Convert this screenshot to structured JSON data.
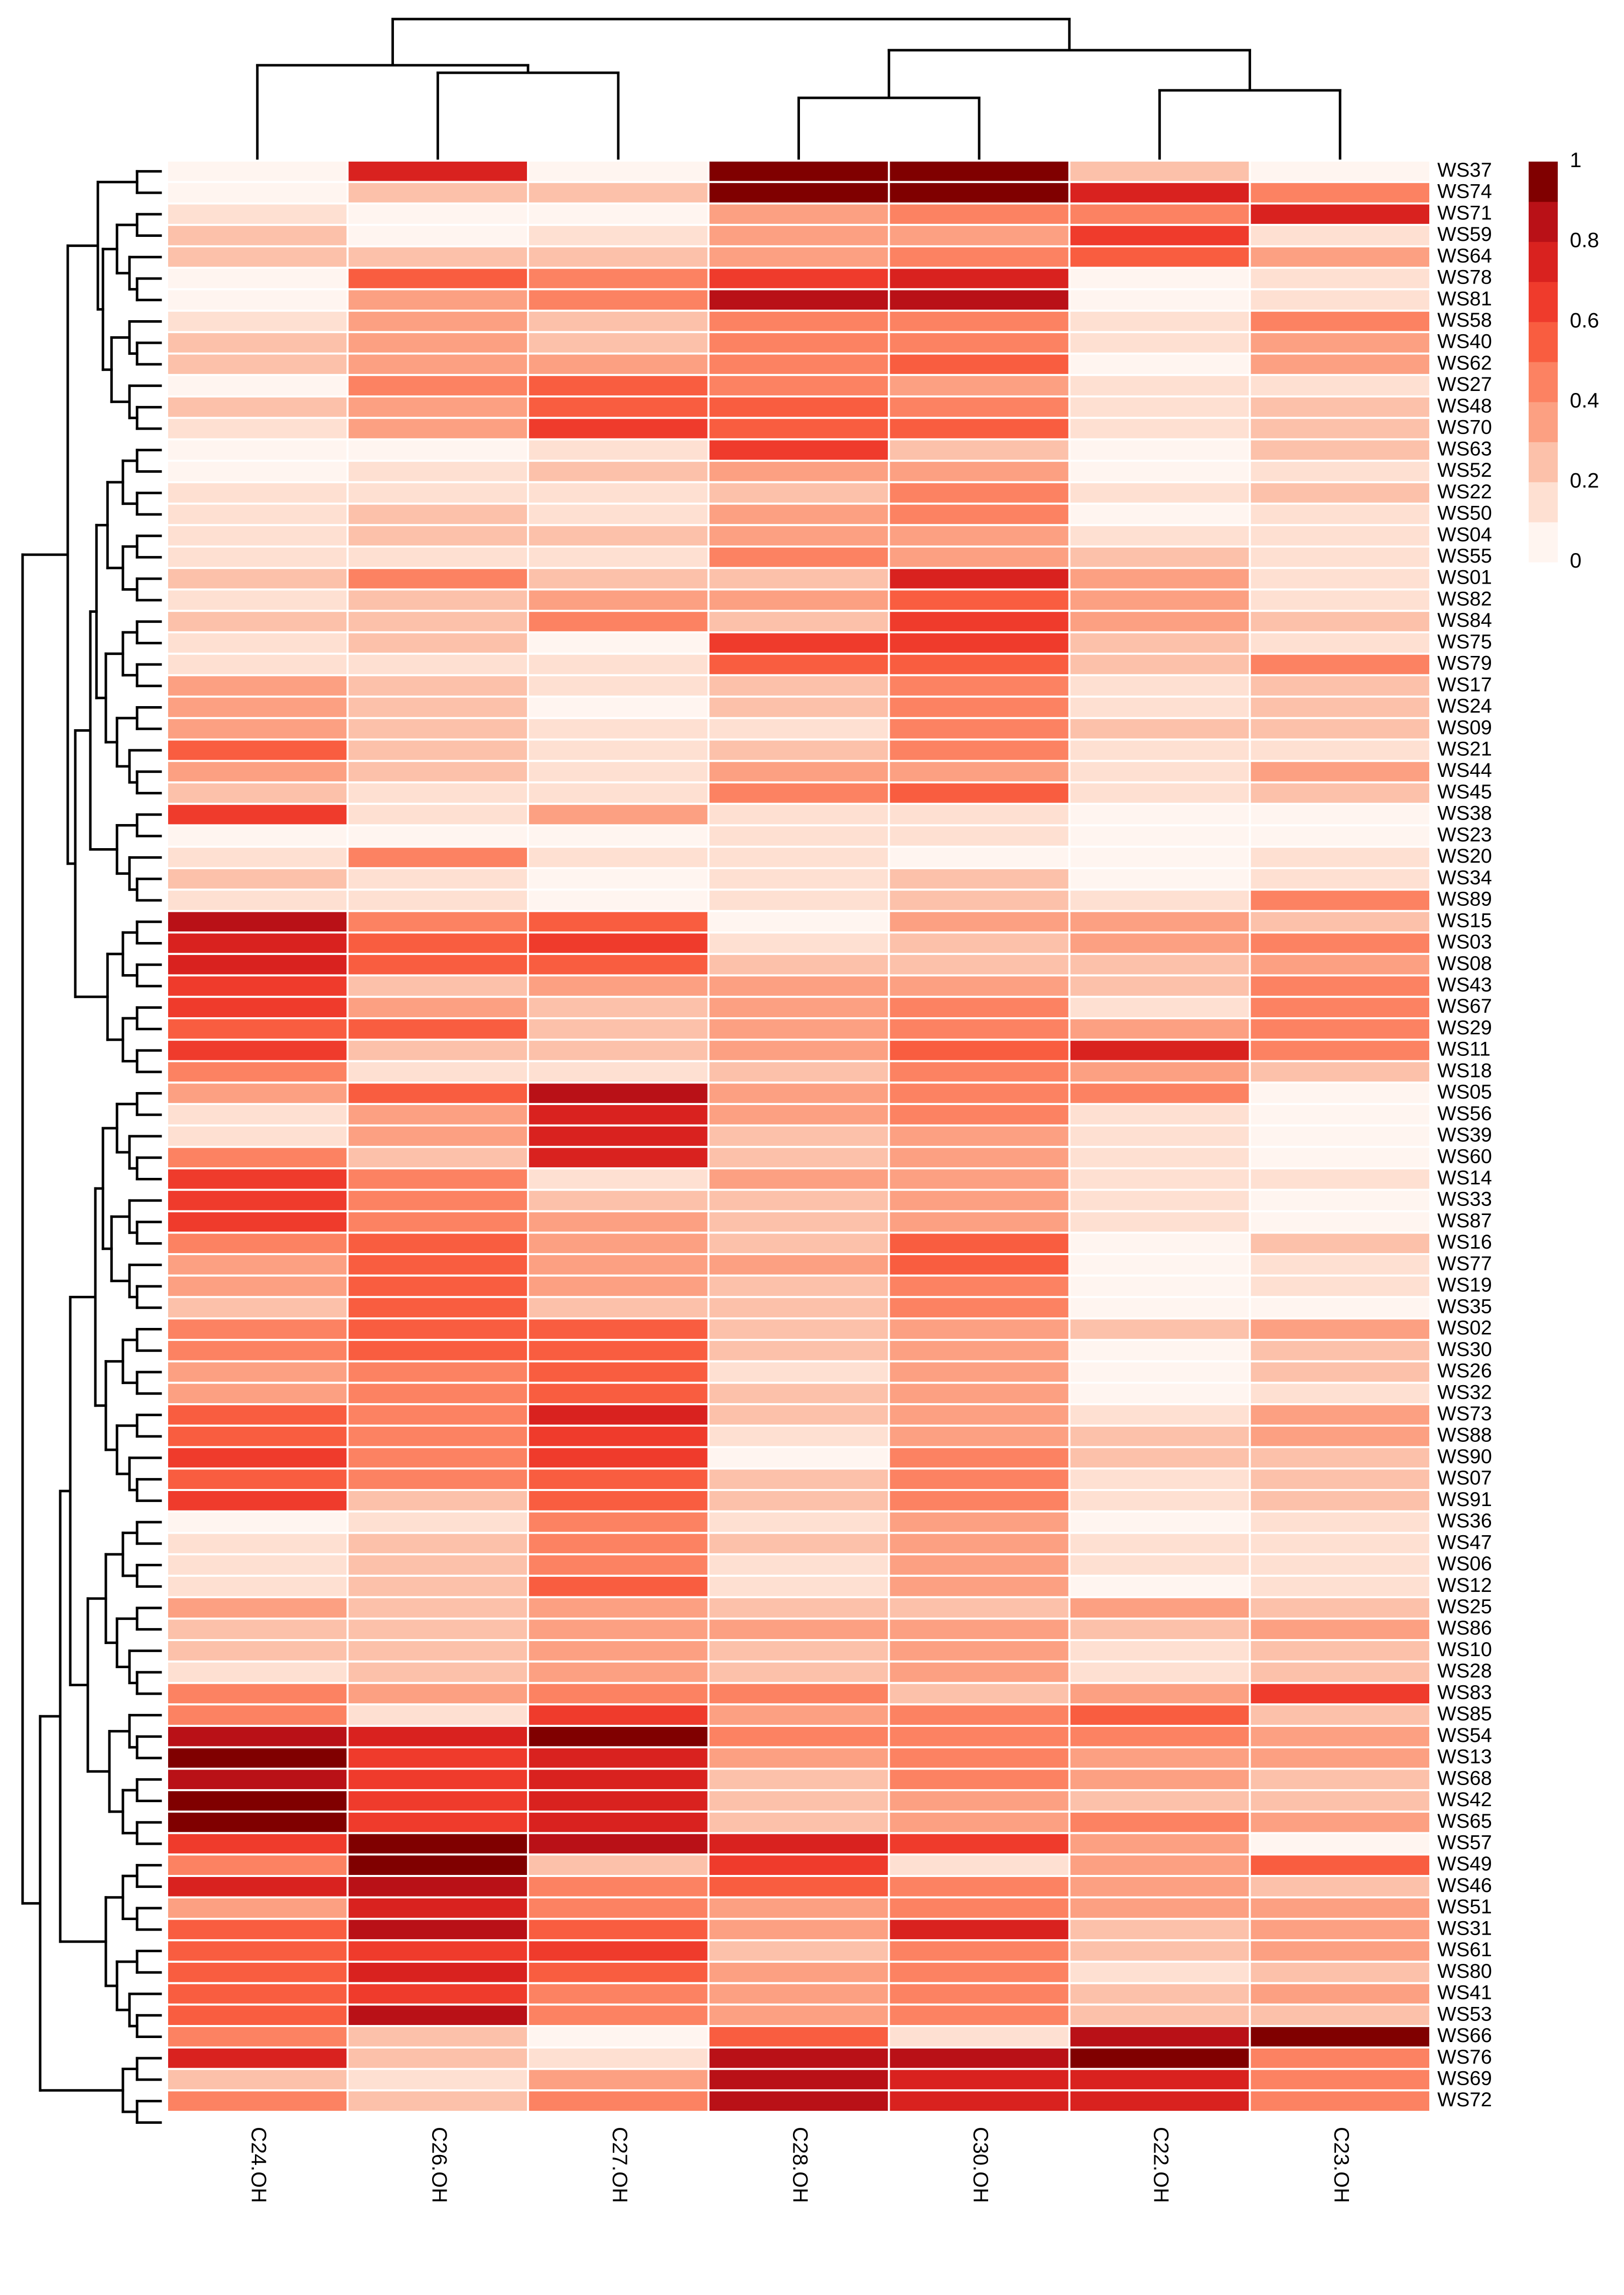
{
  "chart_data": {
    "type": "heatmap",
    "columns": [
      "C24.OH",
      "C26.OH",
      "C27.OH",
      "C28.OH",
      "C30.OH",
      "C22.OH",
      "C23.OH"
    ],
    "rows": [
      {
        "label": "WS37",
        "values": [
          0.02,
          0.8,
          0.03,
          1.0,
          1.0,
          0.3,
          0.05
        ]
      },
      {
        "label": "WS74",
        "values": [
          0.05,
          0.3,
          0.3,
          1.0,
          1.0,
          0.8,
          0.45
        ]
      },
      {
        "label": "WS71",
        "values": [
          0.15,
          0.05,
          0.1,
          0.35,
          0.45,
          0.5,
          0.75
        ]
      },
      {
        "label": "WS59",
        "values": [
          0.3,
          0.02,
          0.15,
          0.35,
          0.4,
          0.7,
          0.2
        ]
      },
      {
        "label": "WS64",
        "values": [
          0.3,
          0.3,
          0.3,
          0.4,
          0.45,
          0.6,
          0.4
        ]
      },
      {
        "label": "WS78",
        "values": [
          0.05,
          0.55,
          0.45,
          0.7,
          0.8,
          0.1,
          0.15
        ]
      },
      {
        "label": "WS81",
        "values": [
          0.05,
          0.4,
          0.45,
          0.85,
          0.85,
          0.05,
          0.2
        ]
      },
      {
        "label": "WS58",
        "values": [
          0.2,
          0.35,
          0.3,
          0.45,
          0.5,
          0.2,
          0.45
        ]
      },
      {
        "label": "WS40",
        "values": [
          0.3,
          0.35,
          0.3,
          0.45,
          0.45,
          0.15,
          0.4
        ]
      },
      {
        "label": "WS62",
        "values": [
          0.25,
          0.35,
          0.35,
          0.5,
          0.55,
          0.1,
          0.4
        ]
      },
      {
        "label": "WS27",
        "values": [
          0.1,
          0.45,
          0.6,
          0.45,
          0.35,
          0.15,
          0.2
        ]
      },
      {
        "label": "WS48",
        "values": [
          0.3,
          0.4,
          0.6,
          0.6,
          0.5,
          0.2,
          0.3
        ]
      },
      {
        "label": "WS70",
        "values": [
          0.15,
          0.35,
          0.7,
          0.6,
          0.55,
          0.2,
          0.25
        ]
      },
      {
        "label": "WS63",
        "values": [
          0.05,
          0.1,
          0.2,
          0.7,
          0.3,
          0.1,
          0.3
        ]
      },
      {
        "label": "WS52",
        "values": [
          0.05,
          0.15,
          0.3,
          0.35,
          0.35,
          0.1,
          0.15
        ]
      },
      {
        "label": "WS22",
        "values": [
          0.15,
          0.15,
          0.2,
          0.3,
          0.45,
          0.2,
          0.3
        ]
      },
      {
        "label": "WS50",
        "values": [
          0.15,
          0.25,
          0.15,
          0.4,
          0.45,
          0.1,
          0.15
        ]
      },
      {
        "label": "WS04",
        "values": [
          0.2,
          0.3,
          0.25,
          0.35,
          0.4,
          0.2,
          0.15
        ]
      },
      {
        "label": "WS55",
        "values": [
          0.2,
          0.2,
          0.2,
          0.45,
          0.4,
          0.3,
          0.15
        ]
      },
      {
        "label": "WS01",
        "values": [
          0.25,
          0.45,
          0.3,
          0.3,
          0.75,
          0.35,
          0.15
        ]
      },
      {
        "label": "WS82",
        "values": [
          0.15,
          0.25,
          0.35,
          0.4,
          0.6,
          0.35,
          0.2
        ]
      },
      {
        "label": "WS84",
        "values": [
          0.3,
          0.25,
          0.45,
          0.3,
          0.7,
          0.35,
          0.25
        ]
      },
      {
        "label": "WS75",
        "values": [
          0.2,
          0.3,
          0.1,
          0.7,
          0.65,
          0.3,
          0.2
        ]
      },
      {
        "label": "WS79",
        "values": [
          0.15,
          0.2,
          0.15,
          0.6,
          0.6,
          0.25,
          0.45
        ]
      },
      {
        "label": "WS17",
        "values": [
          0.4,
          0.3,
          0.15,
          0.3,
          0.45,
          0.2,
          0.3
        ]
      },
      {
        "label": "WS24",
        "values": [
          0.35,
          0.3,
          0.1,
          0.25,
          0.5,
          0.2,
          0.25
        ]
      },
      {
        "label": "WS09",
        "values": [
          0.35,
          0.3,
          0.2,
          0.2,
          0.45,
          0.25,
          0.3
        ]
      },
      {
        "label": "WS21",
        "values": [
          0.55,
          0.3,
          0.2,
          0.25,
          0.45,
          0.15,
          0.2
        ]
      },
      {
        "label": "WS44",
        "values": [
          0.4,
          0.25,
          0.15,
          0.35,
          0.4,
          0.2,
          0.35
        ]
      },
      {
        "label": "WS45",
        "values": [
          0.3,
          0.15,
          0.2,
          0.45,
          0.55,
          0.15,
          0.3
        ]
      },
      {
        "label": "WS38",
        "values": [
          0.7,
          0.2,
          0.4,
          0.15,
          0.2,
          0.05,
          0.1
        ]
      },
      {
        "label": "WS23",
        "values": [
          0.05,
          0.1,
          0.05,
          0.15,
          0.15,
          0.1,
          0.1
        ]
      },
      {
        "label": "WS20",
        "values": [
          0.15,
          0.45,
          0.15,
          0.2,
          0.05,
          0.1,
          0.15
        ]
      },
      {
        "label": "WS34",
        "values": [
          0.3,
          0.2,
          0.05,
          0.2,
          0.3,
          0.1,
          0.2
        ]
      },
      {
        "label": "WS89",
        "values": [
          0.2,
          0.2,
          0.1,
          0.15,
          0.25,
          0.15,
          0.45
        ]
      },
      {
        "label": "WS15",
        "values": [
          0.9,
          0.5,
          0.55,
          0.1,
          0.35,
          0.4,
          0.3
        ]
      },
      {
        "label": "WS03",
        "values": [
          0.8,
          0.6,
          0.65,
          0.2,
          0.3,
          0.35,
          0.45
        ]
      },
      {
        "label": "WS08",
        "values": [
          0.75,
          0.55,
          0.55,
          0.25,
          0.3,
          0.25,
          0.35
        ]
      },
      {
        "label": "WS43",
        "values": [
          0.7,
          0.3,
          0.4,
          0.4,
          0.4,
          0.3,
          0.5
        ]
      },
      {
        "label": "WS67",
        "values": [
          0.65,
          0.35,
          0.3,
          0.35,
          0.45,
          0.2,
          0.45
        ]
      },
      {
        "label": "WS29",
        "values": [
          0.6,
          0.55,
          0.25,
          0.4,
          0.5,
          0.35,
          0.45
        ]
      },
      {
        "label": "WS11",
        "values": [
          0.7,
          0.3,
          0.25,
          0.35,
          0.55,
          0.75,
          0.5
        ]
      },
      {
        "label": "WS18",
        "values": [
          0.45,
          0.2,
          0.15,
          0.3,
          0.5,
          0.4,
          0.3
        ]
      },
      {
        "label": "WS05",
        "values": [
          0.4,
          0.55,
          0.9,
          0.35,
          0.45,
          0.5,
          0.1
        ]
      },
      {
        "label": "WS56",
        "values": [
          0.15,
          0.35,
          0.75,
          0.4,
          0.45,
          0.15,
          0.05
        ]
      },
      {
        "label": "WS39",
        "values": [
          0.15,
          0.35,
          0.75,
          0.3,
          0.35,
          0.15,
          0.1
        ]
      },
      {
        "label": "WS60",
        "values": [
          0.45,
          0.25,
          0.75,
          0.3,
          0.35,
          0.2,
          0.1
        ]
      },
      {
        "label": "WS14",
        "values": [
          0.7,
          0.5,
          0.2,
          0.35,
          0.35,
          0.15,
          0.2
        ]
      },
      {
        "label": "WS33",
        "values": [
          0.65,
          0.5,
          0.25,
          0.3,
          0.4,
          0.2,
          0.1
        ]
      },
      {
        "label": "WS87",
        "values": [
          0.65,
          0.5,
          0.35,
          0.3,
          0.35,
          0.2,
          0.1
        ]
      },
      {
        "label": "WS16",
        "values": [
          0.45,
          0.55,
          0.35,
          0.3,
          0.55,
          0.1,
          0.3
        ]
      },
      {
        "label": "WS77",
        "values": [
          0.4,
          0.6,
          0.35,
          0.35,
          0.55,
          0.1,
          0.2
        ]
      },
      {
        "label": "WS19",
        "values": [
          0.35,
          0.55,
          0.4,
          0.3,
          0.45,
          0.05,
          0.15
        ]
      },
      {
        "label": "WS35",
        "values": [
          0.3,
          0.55,
          0.3,
          0.25,
          0.5,
          0.05,
          0.1
        ]
      },
      {
        "label": "WS02",
        "values": [
          0.45,
          0.55,
          0.6,
          0.3,
          0.4,
          0.25,
          0.35
        ]
      },
      {
        "label": "WS30",
        "values": [
          0.45,
          0.55,
          0.6,
          0.3,
          0.4,
          0.1,
          0.3
        ]
      },
      {
        "label": "WS26",
        "values": [
          0.4,
          0.5,
          0.6,
          0.15,
          0.4,
          0.1,
          0.25
        ]
      },
      {
        "label": "WS32",
        "values": [
          0.35,
          0.45,
          0.55,
          0.25,
          0.35,
          0.1,
          0.2
        ]
      },
      {
        "label": "WS73",
        "values": [
          0.6,
          0.5,
          0.75,
          0.3,
          0.4,
          0.2,
          0.35
        ]
      },
      {
        "label": "WS88",
        "values": [
          0.55,
          0.5,
          0.65,
          0.2,
          0.4,
          0.25,
          0.35
        ]
      },
      {
        "label": "WS90",
        "values": [
          0.65,
          0.5,
          0.7,
          0.1,
          0.45,
          0.25,
          0.3
        ]
      },
      {
        "label": "WS07",
        "values": [
          0.55,
          0.45,
          0.6,
          0.3,
          0.45,
          0.2,
          0.3
        ]
      },
      {
        "label": "WS91",
        "values": [
          0.7,
          0.25,
          0.55,
          0.3,
          0.45,
          0.15,
          0.3
        ]
      },
      {
        "label": "WS36",
        "values": [
          0.1,
          0.2,
          0.45,
          0.2,
          0.35,
          0.1,
          0.15
        ]
      },
      {
        "label": "WS47",
        "values": [
          0.15,
          0.25,
          0.45,
          0.3,
          0.35,
          0.15,
          0.15
        ]
      },
      {
        "label": "WS06",
        "values": [
          0.2,
          0.3,
          0.45,
          0.2,
          0.35,
          0.15,
          0.2
        ]
      },
      {
        "label": "WS12",
        "values": [
          0.2,
          0.25,
          0.55,
          0.2,
          0.4,
          0.1,
          0.15
        ]
      },
      {
        "label": "WS25",
        "values": [
          0.4,
          0.3,
          0.35,
          0.25,
          0.3,
          0.35,
          0.3
        ]
      },
      {
        "label": "WS86",
        "values": [
          0.3,
          0.3,
          0.4,
          0.35,
          0.4,
          0.3,
          0.35
        ]
      },
      {
        "label": "WS10",
        "values": [
          0.25,
          0.3,
          0.35,
          0.3,
          0.35,
          0.2,
          0.25
        ]
      },
      {
        "label": "WS28",
        "values": [
          0.2,
          0.3,
          0.35,
          0.3,
          0.35,
          0.2,
          0.3
        ]
      },
      {
        "label": "WS83",
        "values": [
          0.45,
          0.35,
          0.45,
          0.45,
          0.3,
          0.4,
          0.65
        ]
      },
      {
        "label": "WS85",
        "values": [
          0.45,
          0.2,
          0.7,
          0.4,
          0.45,
          0.6,
          0.3
        ]
      },
      {
        "label": "WS54",
        "values": [
          0.85,
          0.8,
          0.95,
          0.45,
          0.5,
          0.45,
          0.4
        ]
      },
      {
        "label": "WS13",
        "values": [
          0.95,
          0.7,
          0.75,
          0.4,
          0.45,
          0.4,
          0.35
        ]
      },
      {
        "label": "WS68",
        "values": [
          0.9,
          0.7,
          0.75,
          0.3,
          0.45,
          0.35,
          0.3
        ]
      },
      {
        "label": "WS42",
        "values": [
          0.95,
          0.7,
          0.75,
          0.25,
          0.35,
          0.3,
          0.3
        ]
      },
      {
        "label": "WS65",
        "values": [
          0.95,
          0.65,
          0.8,
          0.3,
          0.4,
          0.45,
          0.35
        ]
      },
      {
        "label": "WS57",
        "values": [
          0.65,
          0.95,
          0.85,
          0.75,
          0.7,
          0.35,
          0.1
        ]
      },
      {
        "label": "WS49",
        "values": [
          0.45,
          0.95,
          0.3,
          0.65,
          0.2,
          0.35,
          0.6
        ]
      },
      {
        "label": "WS46",
        "values": [
          0.75,
          0.85,
          0.45,
          0.55,
          0.45,
          0.4,
          0.3
        ]
      },
      {
        "label": "WS51",
        "values": [
          0.4,
          0.8,
          0.5,
          0.4,
          0.45,
          0.35,
          0.35
        ]
      },
      {
        "label": "WS31",
        "values": [
          0.55,
          0.85,
          0.6,
          0.4,
          0.8,
          0.3,
          0.35
        ]
      },
      {
        "label": "WS61",
        "values": [
          0.6,
          0.65,
          0.7,
          0.3,
          0.5,
          0.3,
          0.4
        ]
      },
      {
        "label": "WS80",
        "values": [
          0.6,
          0.75,
          0.55,
          0.35,
          0.45,
          0.2,
          0.3
        ]
      },
      {
        "label": "WS41",
        "values": [
          0.55,
          0.65,
          0.5,
          0.35,
          0.45,
          0.25,
          0.35
        ]
      },
      {
        "label": "WS53",
        "values": [
          0.6,
          0.85,
          0.5,
          0.4,
          0.45,
          0.25,
          0.3
        ]
      },
      {
        "label": "WS66",
        "values": [
          0.45,
          0.3,
          0.1,
          0.6,
          0.2,
          0.85,
          0.95
        ]
      },
      {
        "label": "WS76",
        "values": [
          0.75,
          0.3,
          0.2,
          0.85,
          0.85,
          0.95,
          0.45
        ]
      },
      {
        "label": "WS69",
        "values": [
          0.3,
          0.2,
          0.35,
          0.9,
          0.75,
          0.75,
          0.5
        ]
      },
      {
        "label": "WS72",
        "values": [
          0.45,
          0.25,
          0.45,
          0.9,
          0.8,
          0.8,
          0.5
        ]
      }
    ],
    "colorbar": {
      "ticks": [
        "1",
        "0.8",
        "0.6",
        "0.4",
        "0.2",
        "0"
      ],
      "range": [
        0,
        1
      ],
      "bins": 10,
      "colors": [
        "#FFF5F0",
        "#FEE0D2",
        "#FCC1AA",
        "#FCA082",
        "#FC8262",
        "#F95D40",
        "#EF3B2C",
        "#D9221F",
        "#B91117",
        "#800000"
      ]
    },
    "row_dendrogram": true,
    "column_dendrogram": true,
    "title": "",
    "xlabel": "",
    "ylabel": ""
  }
}
